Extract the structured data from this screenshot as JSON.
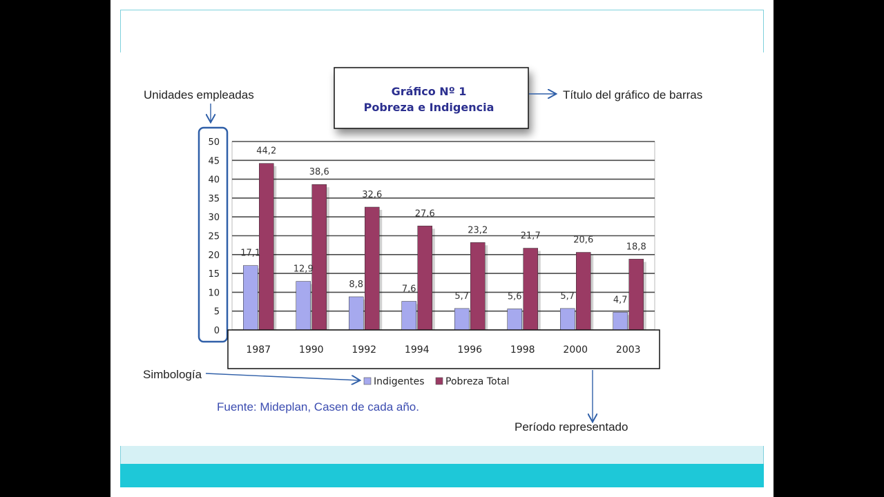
{
  "annotations": {
    "units": "Unidades empleadas",
    "title_label": "Título del gráfico de barras",
    "symbology": "Simbología",
    "period": "Período representado"
  },
  "source": "Fuente: Mideplan, Casen de cada año.",
  "colors": {
    "indigentes": "#a6a9ee",
    "pobreza_total": "#9a3b64",
    "accent_cyan": "#1ec8d8",
    "annotation_blue": "#2f5fa8"
  },
  "chart_data": {
    "type": "bar",
    "title": [
      "Gráfico Nº 1",
      "Pobreza e Indigencia"
    ],
    "categories": [
      "1987",
      "1990",
      "1992",
      "1994",
      "1996",
      "1998",
      "2000",
      "2003"
    ],
    "series": [
      {
        "name": "Indigentes",
        "values": [
          17.1,
          12.9,
          8.8,
          7.6,
          5.7,
          5.6,
          5.7,
          4.7
        ],
        "labels": [
          "17,1",
          "12,9",
          "8,8",
          "7,6",
          "5,7",
          "5,6",
          "5,7",
          "4,7"
        ]
      },
      {
        "name": "Pobreza Total",
        "values": [
          44.2,
          38.6,
          32.6,
          27.6,
          23.2,
          21.7,
          20.6,
          18.8
        ],
        "labels": [
          "44,2",
          "38,6",
          "32,6",
          "27,6",
          "23,2",
          "21,7",
          "20,6",
          "18,8"
        ]
      }
    ],
    "yticks": [
      "0",
      "5",
      "10",
      "15",
      "20",
      "25",
      "30",
      "35",
      "40",
      "45",
      "50"
    ],
    "ylim": [
      0,
      50
    ],
    "grid": true,
    "legend_position": "bottom"
  }
}
